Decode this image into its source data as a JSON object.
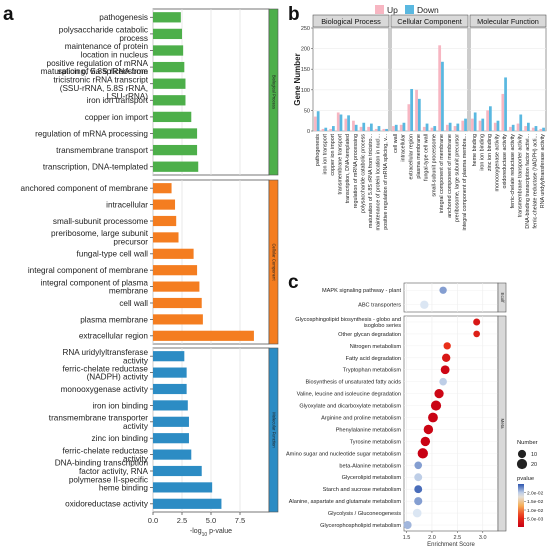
{
  "chart_data": [
    {
      "panel": "a",
      "type": "bar",
      "orientation": "horizontal",
      "xlabel": "-log10 p-value",
      "xlim": [
        0,
        10
      ],
      "x_ticks": [
        "0.0",
        "2.5",
        "5.0",
        "7.5"
      ],
      "x_tick_values": [
        0,
        2.5,
        5,
        7.5
      ],
      "grid": true,
      "groups": [
        {
          "name": "Biological Process",
          "color": "#4daf4a",
          "categories": [
            "pathogenesis",
            "polysaccharide catabolic process",
            "maintenance of protein location in nucleus",
            "positive regulation of mRNA splicing, via spliceosome",
            "maturation of 5.8S rRNA from tricistronic rRNA transcript (SSU-rRNA, 5.8S rRNA, LSU-rRNA)",
            "iron ion transport",
            "copper ion import",
            "regulation of mRNA processing",
            "transmembrane transport",
            "transcription, DNA-templated"
          ],
          "values": [
            2.4,
            2.5,
            2.6,
            2.7,
            2.8,
            2.8,
            3.3,
            3.8,
            3.8,
            3.9
          ]
        },
        {
          "name": "Cellular Component",
          "color": "#f47d20",
          "categories": [
            "anchored component of membrane",
            "intracellular",
            "small-subunit processome",
            "preribosome, large subunit precursor",
            "fungal-type cell wall",
            "integral component of membrane",
            "integral component of plasma membrane",
            "cell wall",
            "plasma membrane",
            "extracellular region"
          ],
          "values": [
            1.6,
            1.9,
            2.0,
            2.2,
            3.5,
            3.8,
            4.0,
            4.2,
            4.3,
            8.7
          ]
        },
        {
          "name": "Molecular Function",
          "color": "#2c8cc4",
          "categories": [
            "RNA uridylyltransferase activity",
            "ferric-chelate reductase (NADPH) activity",
            "monooxygenase activity",
            "iron ion binding",
            "transmembrane transporter activity",
            "zinc ion binding",
            "ferric-chelate reductase activity",
            "DNA-binding transcription factor activity, RNA polymerase II-specific",
            "heme binding",
            "oxidoreductase activity"
          ],
          "values": [
            2.7,
            2.9,
            2.9,
            3.0,
            3.1,
            3.1,
            3.3,
            4.2,
            5.1,
            5.9
          ]
        }
      ]
    },
    {
      "panel": "b",
      "type": "bar",
      "ylabel": "Gene Number",
      "ylim": [
        0,
        250
      ],
      "y_ticks": [
        "0",
        "50",
        "100",
        "150",
        "200",
        "250"
      ],
      "y_tick_values": [
        0,
        50,
        100,
        150,
        200,
        250
      ],
      "legend": {
        "position": "top",
        "entries": [
          "Up",
          "Down"
        ]
      },
      "series_colors": {
        "Up": "#f7b6c2",
        "Down": "#5ab8e0"
      },
      "facets": [
        {
          "name": "Biological Process",
          "categories": [
            "pathogenesis",
            "iron ion transport",
            "copper ion import",
            "transmembrane transport",
            "transcription, DNA-templated",
            "regulation of mRNA processing",
            "polysaccharide catabolic process",
            "maturation of 5.8S rRNA from tricistro...",
            "maintenance of protein location in nucl...",
            "positive regulation of mRNA splicing, v..."
          ],
          "series": [
            {
              "name": "Up",
              "values": [
                35,
                5,
                5,
                45,
                30,
                25,
                10,
                10,
                5,
                5
              ]
            },
            {
              "name": "Down",
              "values": [
                48,
                8,
                12,
                40,
                38,
                15,
                20,
                18,
                12,
                5
              ]
            }
          ]
        },
        {
          "name": "Cellular Component",
          "categories": [
            "cell wall",
            "intracellular",
            "extracellular region",
            "plasma membrane",
            "fungal-type cell wall",
            "small-subunit processome",
            "integral component of membrane",
            "anchored component of membrane",
            "preribosome, large subunit precursor",
            "integral component of plasma membra..."
          ],
          "series": [
            {
              "name": "Up",
              "values": [
                12,
                15,
                65,
                100,
                10,
                8,
                208,
                15,
                12,
                25
              ]
            },
            {
              "name": "Down",
              "values": [
                15,
                20,
                102,
                78,
                18,
                12,
                168,
                20,
                18,
                30
              ]
            }
          ]
        },
        {
          "name": "Molecular Function",
          "categories": [
            "heme binding",
            "iron ion binding",
            "zinc ion binding",
            "monooxygenase activity",
            "oxidoreductase activity",
            "ferric-chelate reductase activity",
            "transmembrane transporter activity",
            "DNA-binding transcription factor activi...",
            "ferric-chelate reductase (NADPH) acti...",
            "RNA uridylyltransferase activity"
          ],
          "series": [
            {
              "name": "Up",
              "values": [
                30,
                25,
                50,
                20,
                90,
                10,
                18,
                12,
                8,
                5
              ]
            },
            {
              "name": "Down",
              "values": [
                45,
                30,
                60,
                25,
                130,
                15,
                40,
                20,
                12,
                8
              ]
            }
          ]
        }
      ]
    },
    {
      "panel": "c",
      "type": "scatter",
      "xlabel": "Enrichment Score",
      "xlim": [
        1.45,
        3.3
      ],
      "x_ticks": [
        "1.5",
        "2.0",
        "2.5",
        "3.0"
      ],
      "x_tick_values": [
        1.5,
        2.0,
        2.5,
        3.0
      ],
      "legend": {
        "position": "right",
        "size_title": "Number",
        "size_entries": [
          "10",
          "20"
        ],
        "size_values": [
          10,
          20
        ],
        "color_title": "pvalue",
        "color_ticks": [
          "2.0e-02",
          "1.5e-02",
          "1.0e-02",
          "5.0e-03"
        ],
        "color_tick_values": [
          0.02,
          0.015,
          0.01,
          0.005
        ],
        "color_range": [
          0.0002,
          0.025
        ]
      },
      "facets": [
        {
          "name": "Ecolf",
          "terms": [
            "MAPK signaling pathway - plant",
            "ABC transporters"
          ],
          "x": [
            2.22,
            1.85
          ],
          "number": [
            7,
            11
          ],
          "pvalue": [
            0.022,
            0.019
          ]
        },
        {
          "name": "Meta",
          "terms": [
            "Glycosphingolipid biosynthesis - globo and isoglobo series",
            "Other glycan degradation",
            "Nitrogen metabolism",
            "Fatty acid degradation",
            "Tryptophan metabolism",
            "Biosynthesis of unsaturated fatty acids",
            "Valine, leucine and isoleucine degradation",
            "Glyoxylate and dicarboxylate metabolism",
            "Arginine and proline metabolism",
            "Phenylalanine metabolism",
            "Tyrosine metabolism",
            "Amino sugar and nucleotide sugar metabolism",
            "beta-Alanine metabolism",
            "Glycerolipid metabolism",
            "Starch and sucrose metabolism",
            "Alanine, aspartate and glutamate metabolism",
            "Glycolysis / Gluconeogenesis",
            "Glycerophospholipid metabolism"
          ],
          "x": [
            2.88,
            2.88,
            2.3,
            2.28,
            2.26,
            2.22,
            2.14,
            2.08,
            2.02,
            1.93,
            1.87,
            1.82,
            1.73,
            1.73,
            1.73,
            1.73,
            1.71,
            1.52
          ],
          "number": [
            6,
            5,
            7,
            11,
            13,
            8,
            15,
            20,
            18,
            16,
            16,
            21,
            8,
            9,
            9,
            10,
            12,
            10
          ],
          "pvalue": [
            0.003,
            0.004,
            0.006,
            0.003,
            0.001,
            0.02,
            0.001,
            0.0005,
            0.0004,
            0.0008,
            0.0004,
            0.0002,
            0.022,
            0.02,
            0.024,
            0.022,
            0.019,
            0.021
          ]
        }
      ]
    }
  ]
}
